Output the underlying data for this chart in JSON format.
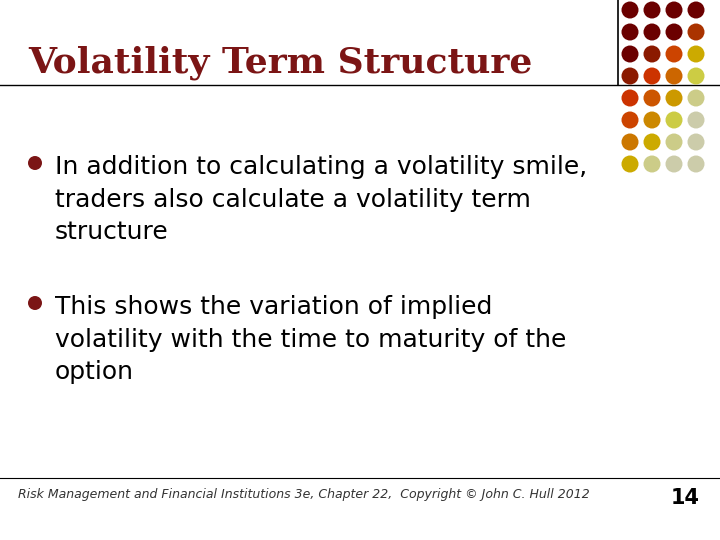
{
  "title": "Volatility Term Structure",
  "title_color": "#7B1515",
  "title_fontsize": 26,
  "title_bold": true,
  "bullet_points": [
    "In addition to calculating a volatility smile,\ntraders also calculate a volatility term\nstructure",
    "This shows the variation of implied\nvolatility with the time to maturity of the\noption"
  ],
  "bullet_fontsize": 18,
  "bullet_color": "#000000",
  "bullet_dot_color": "#7B1515",
  "footer_text": "Risk Management and Financial Institutions 3e, Chapter 22,  Copyright © John C. Hull 2012",
  "footer_page": "14",
  "footer_fontsize": 9,
  "bg_color": "#FFFFFF",
  "divider_line_color": "#000000",
  "dot_grid_colors": [
    [
      "#6B0000",
      "#6B0000",
      "#6B0000",
      "#6B0000"
    ],
    [
      "#6B0000",
      "#6B0000",
      "#6B0000",
      "#AA3300"
    ],
    [
      "#6B0000",
      "#8B1A00",
      "#CC4400",
      "#CCAA00"
    ],
    [
      "#8B1A00",
      "#CC3300",
      "#CC6600",
      "#CCCC44"
    ],
    [
      "#CC3300",
      "#CC5500",
      "#CC9900",
      "#CCCC88"
    ],
    [
      "#CC4400",
      "#CC8800",
      "#CCCC44",
      "#CCCCAA"
    ],
    [
      "#CC7700",
      "#CCAA00",
      "#CCCC88",
      "#CCCCAA"
    ],
    [
      "#CCAA00",
      "#CCCC88",
      "#CCCCAA",
      "#CCCCAA"
    ]
  ]
}
